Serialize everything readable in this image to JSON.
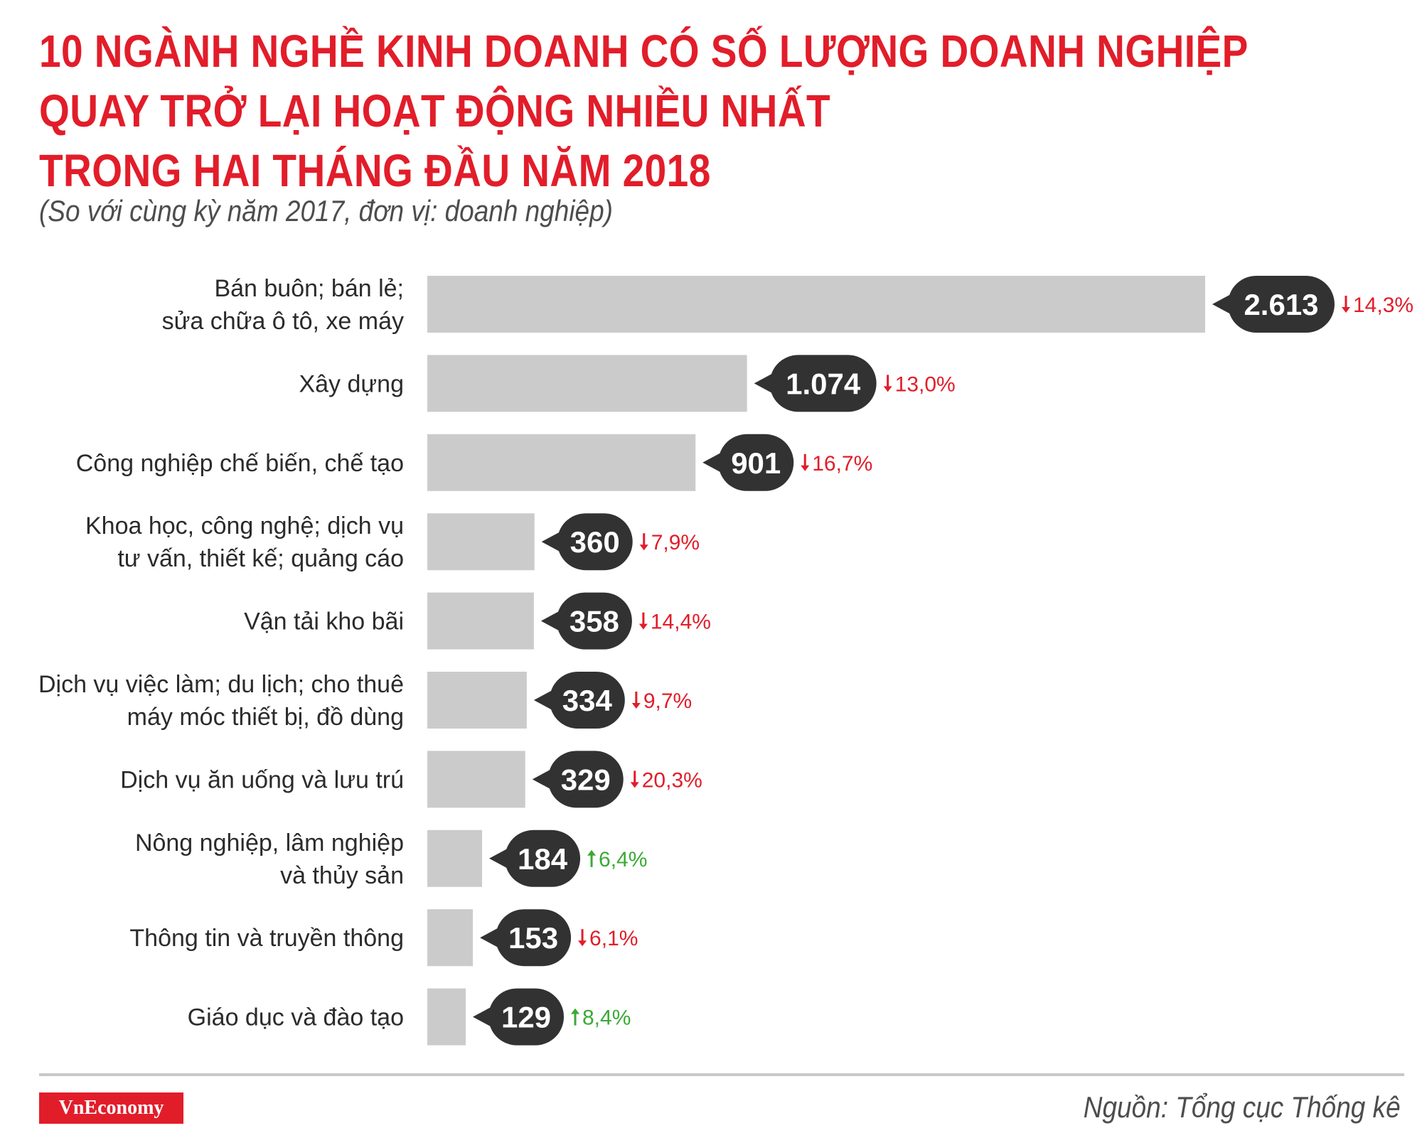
{
  "header": {
    "title_lines": [
      "10 NGÀNH NGHỀ KINH DOANH CÓ SỐ LƯỢNG DOANH NGHIỆP",
      "QUAY TRỞ LẠI HOẠT ĐỘNG NHIỀU NHẤT",
      "TRONG HAI THÁNG ĐẦU NĂM 2018"
    ],
    "subtitle": "(So với cùng kỳ năm 2017, đơn vị: doanh nghiệp)"
  },
  "footer": {
    "brand": "VnEconomy",
    "source": "Nguồn: Tổng cục Thống kê"
  },
  "colors": {
    "title": "#e21d2a",
    "bar": "#cccbcb",
    "bubble": "#323232",
    "down": "#e21d2a",
    "up": "#3aaa35"
  },
  "chart_data": {
    "type": "bar",
    "orientation": "horizontal",
    "categories": [
      [
        "Bán buôn; bán lẻ;",
        "sửa chữa ô tô, xe máy"
      ],
      [
        "Xây dựng"
      ],
      [
        "Công nghiệp chế biến, chế tạo"
      ],
      [
        "Khoa học, công nghệ; dịch vụ",
        "tư vấn, thiết kế; quảng cáo"
      ],
      [
        "Vận tải kho bãi"
      ],
      [
        "Dịch vụ việc làm; du lịch; cho thuê",
        "máy móc thiết bị, đồ dùng"
      ],
      [
        "Dịch vụ ăn uống và lưu trú"
      ],
      [
        "Nông nghiệp, lâm nghiệp",
        "và thủy sản"
      ],
      [
        "Thông tin và truyền thông"
      ],
      [
        "Giáo dục và đào tạo"
      ]
    ],
    "values": [
      2613,
      1074,
      901,
      360,
      358,
      334,
      329,
      184,
      153,
      129
    ],
    "value_labels": [
      "2.613",
      "1.074",
      "901",
      "360",
      "358",
      "334",
      "329",
      "184",
      "153",
      "129"
    ],
    "changes": [
      {
        "direction": "down",
        "label": "14,3%"
      },
      {
        "direction": "down",
        "label": "13,0%"
      },
      {
        "direction": "down",
        "label": "16,7%"
      },
      {
        "direction": "down",
        "label": "7,9%"
      },
      {
        "direction": "down",
        "label": "14,4%"
      },
      {
        "direction": "down",
        "label": "9,7%"
      },
      {
        "direction": "down",
        "label": "20,3%"
      },
      {
        "direction": "up",
        "label": "6,4%"
      },
      {
        "direction": "down",
        "label": "6,1%"
      },
      {
        "direction": "up",
        "label": "8,4%"
      }
    ],
    "xlim": [
      0,
      2613
    ],
    "grid": false,
    "legend": "none"
  }
}
